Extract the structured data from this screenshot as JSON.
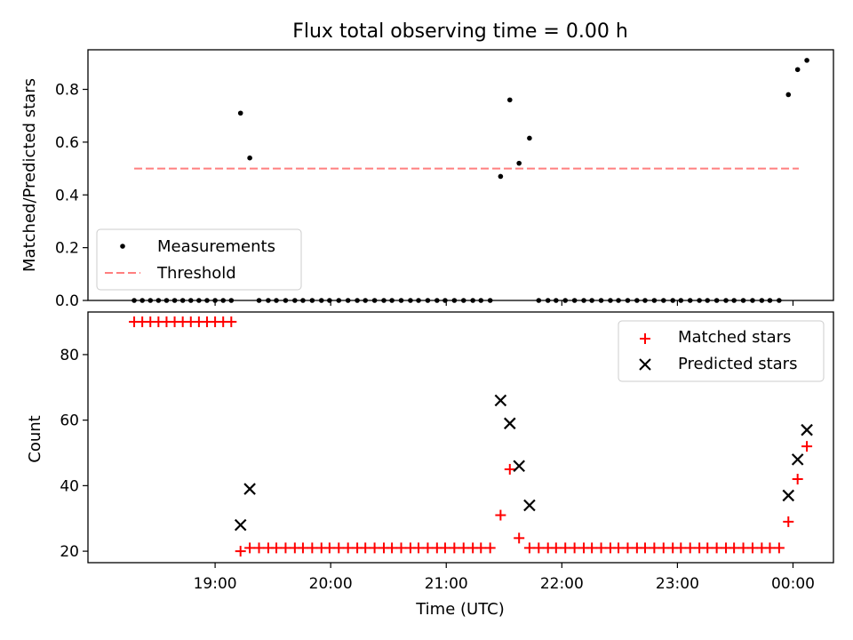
{
  "chart_data": [
    {
      "type": "scatter",
      "title": "Flux total observing time = 0.00 h",
      "xlabel": "",
      "ylabel": "Matched/Predicted stars",
      "ylim": [
        0,
        0.95
      ],
      "yticks": [
        0.0,
        0.2,
        0.4,
        0.6,
        0.8
      ],
      "ytick_labels": [
        "0.0",
        "0.2",
        "0.4",
        "0.6",
        "0.8"
      ],
      "x_unit": "hours since 18:00 UTC",
      "xlim": [
        -0.1,
        6.35
      ],
      "xticks": [
        1,
        2,
        3,
        4,
        5,
        6
      ],
      "legend": {
        "location": "lower-left",
        "entries": [
          "Measurements",
          "Threshold"
        ]
      },
      "threshold": {
        "name": "Threshold",
        "value": 0.5,
        "x_range": [
          0.3,
          6.05
        ],
        "color": "#ff7f7f"
      },
      "series": [
        {
          "name": "Measurements",
          "color": "#000000",
          "x": [
            0.3,
            0.37,
            0.44,
            0.51,
            0.58,
            0.65,
            0.72,
            0.79,
            0.86,
            0.93,
            1.0,
            1.07,
            1.14,
            1.22,
            1.3,
            1.38,
            1.46,
            1.53,
            1.61,
            1.69,
            1.76,
            1.84,
            1.92,
            1.99,
            2.07,
            2.15,
            2.23,
            2.3,
            2.38,
            2.46,
            2.53,
            2.61,
            2.69,
            2.76,
            2.84,
            2.92,
            2.99,
            3.07,
            3.15,
            3.23,
            3.3,
            3.38,
            3.47,
            3.55,
            3.63,
            3.72,
            3.8,
            3.88,
            3.95,
            4.03,
            4.11,
            4.19,
            4.26,
            4.34,
            4.42,
            4.49,
            4.57,
            4.65,
            4.72,
            4.8,
            4.88,
            4.96,
            5.03,
            5.11,
            5.19,
            5.26,
            5.34,
            5.42,
            5.49,
            5.57,
            5.65,
            5.73,
            5.8,
            5.88,
            5.96,
            6.04,
            6.12
          ],
          "y": [
            0,
            0,
            0,
            0,
            0,
            0,
            0,
            0,
            0,
            0,
            0,
            0,
            0,
            0.71,
            0.54,
            0,
            0,
            0,
            0,
            0,
            0,
            0,
            0,
            0,
            0,
            0,
            0,
            0,
            0,
            0,
            0,
            0,
            0,
            0,
            0,
            0,
            0,
            0,
            0,
            0,
            0,
            0,
            0.47,
            0.76,
            0.52,
            0.615,
            0,
            0,
            0,
            0,
            0,
            0,
            0,
            0,
            0,
            0,
            0,
            0,
            0,
            0,
            0,
            0,
            0,
            0,
            0,
            0,
            0,
            0,
            0,
            0,
            0,
            0,
            0,
            0,
            0.78,
            0.875,
            0.91
          ]
        }
      ]
    },
    {
      "type": "scatter",
      "title": "",
      "xlabel": "Time (UTC)",
      "ylabel": "Count",
      "ylim": [
        16.5,
        93
      ],
      "yticks": [
        20,
        40,
        60,
        80
      ],
      "ytick_labels": [
        "20",
        "40",
        "60",
        "80"
      ],
      "x_unit": "hours since 18:00 UTC",
      "xlim": [
        -0.1,
        6.35
      ],
      "xticks": [
        1,
        2,
        3,
        4,
        5,
        6
      ],
      "xtick_labels": [
        "19:00",
        "20:00",
        "21:00",
        "22:00",
        "23:00",
        "00:00"
      ],
      "legend": {
        "location": "top-right",
        "entries": [
          "Matched stars",
          "Predicted stars"
        ]
      },
      "series": [
        {
          "name": "Matched stars",
          "marker": "plus",
          "color": "#ff0000",
          "x": [
            0.3,
            0.37,
            0.44,
            0.51,
            0.58,
            0.65,
            0.72,
            0.79,
            0.86,
            0.93,
            1.0,
            1.07,
            1.14,
            1.22,
            1.3,
            1.38,
            1.46,
            1.53,
            1.61,
            1.69,
            1.76,
            1.84,
            1.92,
            1.99,
            2.07,
            2.15,
            2.23,
            2.3,
            2.38,
            2.46,
            2.53,
            2.61,
            2.69,
            2.76,
            2.84,
            2.92,
            2.99,
            3.07,
            3.15,
            3.23,
            3.3,
            3.38,
            3.47,
            3.55,
            3.63,
            3.72,
            3.8,
            3.88,
            3.95,
            4.03,
            4.11,
            4.19,
            4.26,
            4.34,
            4.42,
            4.49,
            4.57,
            4.65,
            4.72,
            4.8,
            4.88,
            4.96,
            5.03,
            5.11,
            5.19,
            5.26,
            5.34,
            5.42,
            5.49,
            5.57,
            5.65,
            5.73,
            5.8,
            5.88,
            5.96,
            6.04,
            6.12
          ],
          "y": [
            90,
            90,
            90,
            90,
            90,
            90,
            90,
            90,
            90,
            90,
            90,
            90,
            90,
            20,
            21,
            21,
            21,
            21,
            21,
            21,
            21,
            21,
            21,
            21,
            21,
            21,
            21,
            21,
            21,
            21,
            21,
            21,
            21,
            21,
            21,
            21,
            21,
            21,
            21,
            21,
            21,
            21,
            31,
            45,
            24,
            21,
            21,
            21,
            21,
            21,
            21,
            21,
            21,
            21,
            21,
            21,
            21,
            21,
            21,
            21,
            21,
            21,
            21,
            21,
            21,
            21,
            21,
            21,
            21,
            21,
            21,
            21,
            21,
            21,
            29,
            42,
            52
          ]
        },
        {
          "name": "Predicted stars",
          "marker": "x",
          "color": "#000000",
          "x": [
            1.22,
            1.3,
            3.47,
            3.55,
            3.63,
            3.72,
            5.96,
            6.04,
            6.12
          ],
          "y": [
            28,
            39,
            66,
            59,
            46,
            34,
            37,
            48,
            57
          ]
        }
      ]
    }
  ]
}
